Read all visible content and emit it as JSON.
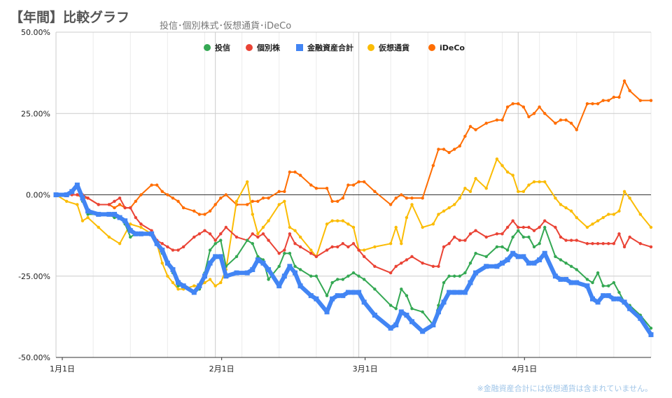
{
  "header": {
    "title": "【年間】比較グラフ",
    "subtitle": "投信･個別株式･仮想通貨･iDeCo"
  },
  "footnote": "※金融資産合計には仮想通貨は含まれていません。",
  "chart_data": {
    "type": "line",
    "title": "【年間】比較グラフ",
    "ylim": [
      -50,
      50
    ],
    "xlim": [
      0,
      112
    ],
    "y_ticks": [
      -50,
      -25,
      0,
      25,
      50
    ],
    "y_tick_labels": [
      "-50.00%",
      "-25.00%",
      "0.00%",
      "25.00%",
      "50.00%"
    ],
    "x_ticks": [
      0,
      30,
      57,
      87
    ],
    "x_tick_labels": [
      "1月1日",
      "2月1日",
      "3月1日",
      "4月1日"
    ],
    "x_units": "days since 1月1日",
    "legend_position": "top",
    "series": [
      {
        "name": "投信",
        "color": "#34a853",
        "x": [
          0,
          2,
          3,
          4,
          5,
          6,
          8,
          10,
          11,
          12,
          13,
          14,
          15,
          16,
          18,
          19,
          20,
          21,
          22,
          23,
          24,
          26,
          27,
          28,
          29,
          30,
          31,
          32,
          34,
          36,
          37,
          38,
          39,
          40,
          42,
          43,
          44,
          45,
          46,
          48,
          49,
          51,
          52,
          53,
          54,
          55,
          56,
          57,
          58,
          60,
          63,
          64,
          65,
          66,
          67,
          69,
          71,
          72,
          73,
          74,
          75,
          76,
          77,
          78,
          79,
          81,
          83,
          84,
          85,
          86,
          87,
          88,
          89,
          90,
          91,
          92,
          94,
          95,
          96,
          97,
          98,
          100,
          101,
          102,
          103,
          104,
          105,
          106,
          107,
          108,
          110,
          112
        ],
        "values": [
          0,
          0,
          1,
          3,
          -2,
          -6,
          -6,
          -6,
          -7,
          -7,
          -9,
          -13,
          -12,
          -12,
          -12,
          -15,
          -18,
          -21,
          -24,
          -28,
          -28,
          -30,
          -29,
          -24,
          -17,
          -15,
          -14,
          -22,
          -19,
          -14,
          -15,
          -19,
          -20,
          -26,
          -22,
          -18,
          -18,
          -22,
          -23,
          -25,
          -25,
          -31,
          -27,
          -26,
          -26,
          -25,
          -24,
          -25,
          -26,
          -29,
          -34,
          -35,
          -29,
          -31,
          -35,
          -36,
          -40,
          -34,
          -27,
          -25,
          -25,
          -25,
          -24,
          -21,
          -18,
          -19,
          -16,
          -16,
          -17,
          -13,
          -11,
          -13,
          -13,
          -16,
          -15,
          -10,
          -19,
          -20,
          -21,
          -22,
          -23,
          -26,
          -27,
          -24,
          -28,
          -28,
          -27,
          -30,
          -33,
          -34,
          -37,
          -41
        ]
      },
      {
        "name": "個別株",
        "color": "#ea4335",
        "x": [
          0,
          2,
          3,
          4,
          5,
          6,
          8,
          10,
          11,
          12,
          13,
          14,
          15,
          16,
          18,
          19,
          20,
          21,
          22,
          23,
          24,
          26,
          27,
          28,
          29,
          30,
          31,
          32,
          34,
          36,
          37,
          38,
          39,
          40,
          42,
          43,
          44,
          45,
          46,
          48,
          49,
          51,
          52,
          53,
          54,
          55,
          56,
          57,
          58,
          60,
          63,
          64,
          65,
          66,
          67,
          69,
          71,
          72,
          73,
          74,
          75,
          76,
          77,
          78,
          79,
          81,
          83,
          84,
          85,
          86,
          87,
          88,
          89,
          90,
          91,
          92,
          94,
          95,
          96,
          97,
          98,
          100,
          101,
          102,
          103,
          104,
          105,
          106,
          107,
          108,
          110,
          112
        ],
        "values": [
          0,
          0,
          0,
          0,
          0,
          -1,
          -3,
          -3,
          -2,
          -1,
          -4,
          -4,
          -7,
          -9,
          -11,
          -14,
          -15,
          -16,
          -17,
          -17,
          -16,
          -13,
          -12,
          -11,
          -12,
          -14,
          -12,
          -10,
          -13,
          -14,
          -12,
          -13,
          -12,
          -14,
          -18,
          -17,
          -12,
          -15,
          -16,
          -18,
          -19,
          -17,
          -16,
          -16,
          -15,
          -16,
          -15,
          -17,
          -19,
          -22,
          -24,
          -22,
          -21,
          -20,
          -19,
          -21,
          -22,
          -22,
          -16,
          -15,
          -13,
          -14,
          -14,
          -12,
          -11,
          -13,
          -12,
          -12,
          -10,
          -8,
          -10,
          -10,
          -10,
          -11,
          -10,
          -8,
          -10,
          -13,
          -14,
          -14,
          -14,
          -15,
          -15,
          -15,
          -15,
          -15,
          -15,
          -12,
          -16,
          -13,
          -15,
          -16
        ]
      },
      {
        "name": "金融資産合計",
        "color": "#4285f4",
        "x": [
          0,
          2,
          3,
          4,
          5,
          6,
          8,
          10,
          11,
          12,
          13,
          14,
          15,
          16,
          18,
          19,
          20,
          21,
          22,
          23,
          24,
          26,
          27,
          28,
          29,
          30,
          31,
          32,
          34,
          36,
          37,
          38,
          39,
          40,
          42,
          43,
          44,
          45,
          46,
          48,
          49,
          51,
          52,
          53,
          54,
          55,
          56,
          57,
          58,
          60,
          63,
          64,
          65,
          66,
          67,
          69,
          71,
          72,
          73,
          74,
          75,
          76,
          77,
          78,
          79,
          81,
          83,
          84,
          85,
          86,
          87,
          88,
          89,
          90,
          91,
          92,
          94,
          95,
          96,
          97,
          98,
          100,
          101,
          102,
          103,
          104,
          105,
          106,
          107,
          108,
          110,
          112
        ],
        "values": [
          0,
          0,
          1,
          3,
          -1,
          -5,
          -6,
          -6,
          -6,
          -7,
          -8,
          -11,
          -12,
          -12,
          -12,
          -15,
          -17,
          -21,
          -23,
          -27,
          -28,
          -30,
          -28,
          -25,
          -21,
          -19,
          -19,
          -25,
          -24,
          -24,
          -23,
          -20,
          -21,
          -23,
          -28,
          -25,
          -22,
          -24,
          -28,
          -31,
          -32,
          -36,
          -32,
          -31,
          -31,
          -30,
          -30,
          -30,
          -33,
          -37,
          -41,
          -40,
          -36,
          -37,
          -39,
          -42,
          -40,
          -36,
          -33,
          -30,
          -30,
          -30,
          -30,
          -27,
          -24,
          -22,
          -22,
          -21,
          -20,
          -18,
          -19,
          -19,
          -21,
          -21,
          -20,
          -18,
          -25,
          -26,
          -26,
          -27,
          -27,
          -28,
          -32,
          -33,
          -31,
          -31,
          -32,
          -32,
          -33,
          -35,
          -38,
          -43
        ]
      },
      {
        "name": "仮想通貨",
        "color": "#fbbc04",
        "x": [
          0,
          2,
          4,
          5,
          6,
          8,
          10,
          12,
          14,
          16,
          18,
          19,
          20,
          21,
          22,
          23,
          24,
          26,
          27,
          28,
          29,
          30,
          31,
          32,
          34,
          36,
          37,
          38,
          39,
          40,
          42,
          43,
          44,
          45,
          46,
          48,
          49,
          51,
          52,
          53,
          54,
          55,
          56,
          57,
          58,
          60,
          63,
          64,
          65,
          66,
          67,
          69,
          71,
          72,
          73,
          74,
          75,
          76,
          77,
          78,
          79,
          81,
          83,
          84,
          85,
          86,
          87,
          88,
          89,
          90,
          91,
          92,
          94,
          95,
          96,
          97,
          98,
          100,
          101,
          102,
          103,
          104,
          105,
          106,
          107,
          108,
          110,
          112
        ],
        "values": [
          0,
          -2,
          -3,
          -8,
          -7,
          -10,
          -13,
          -15,
          -9,
          -10,
          -12,
          -15,
          -21,
          -25,
          -27,
          -29,
          -29,
          -28,
          -28,
          -27,
          -26,
          -28,
          -27,
          -23,
          -2,
          4,
          -6,
          -12,
          -10,
          -8,
          -3,
          -2,
          -10,
          -11,
          -13,
          -17,
          -19,
          -9,
          -8,
          -8,
          -8,
          -9,
          -10,
          -17,
          -17,
          -16,
          -15,
          -10,
          -15,
          -7,
          -3,
          -10,
          -9,
          -6,
          -5,
          -4,
          -3,
          -1,
          2,
          1,
          5,
          2,
          11,
          9,
          7,
          6,
          1,
          1,
          3,
          4,
          4,
          4,
          -1,
          -3,
          -4,
          -5,
          -7,
          -10,
          -9,
          -8,
          -7,
          -6,
          -6,
          -5,
          1,
          -1,
          -6,
          -10
        ]
      },
      {
        "name": "iDeCo",
        "color": "#ff6d01",
        "x": [
          0,
          2,
          4,
          5,
          6,
          8,
          10,
          11,
          12,
          13,
          14,
          15,
          16,
          18,
          19,
          20,
          21,
          22,
          23,
          24,
          26,
          27,
          28,
          29,
          30,
          31,
          32,
          34,
          36,
          37,
          38,
          39,
          40,
          42,
          43,
          44,
          45,
          46,
          48,
          49,
          51,
          52,
          53,
          54,
          55,
          56,
          57,
          58,
          60,
          63,
          64,
          65,
          66,
          67,
          69,
          71,
          72,
          73,
          74,
          75,
          76,
          77,
          78,
          79,
          81,
          83,
          84,
          85,
          86,
          87,
          88,
          89,
          90,
          91,
          92,
          94,
          95,
          96,
          97,
          98,
          100,
          101,
          102,
          103,
          104,
          105,
          106,
          107,
          108,
          110,
          112
        ],
        "values": [
          0,
          0,
          0,
          -1,
          -1,
          -3,
          -3,
          -4,
          -3,
          -4,
          -4,
          -2,
          0,
          3,
          3,
          1,
          0,
          -1,
          -2,
          -4,
          -5,
          -6,
          -6,
          -5,
          -3,
          -1,
          0,
          -3,
          -3,
          -2,
          -2,
          -1,
          -1,
          1,
          1,
          7,
          7,
          6,
          3,
          2,
          2,
          -2,
          -2,
          -1,
          3,
          3,
          4,
          4,
          1,
          -3,
          -1,
          0,
          -1,
          -1,
          -1,
          9,
          14,
          14,
          13,
          14,
          15,
          18,
          21,
          20,
          22,
          23,
          23,
          27,
          28,
          28,
          27,
          24,
          25,
          27,
          25,
          22,
          23,
          23,
          22,
          20,
          28,
          28,
          28,
          29,
          29,
          30,
          30,
          35,
          32,
          29,
          29
        ]
      }
    ]
  }
}
